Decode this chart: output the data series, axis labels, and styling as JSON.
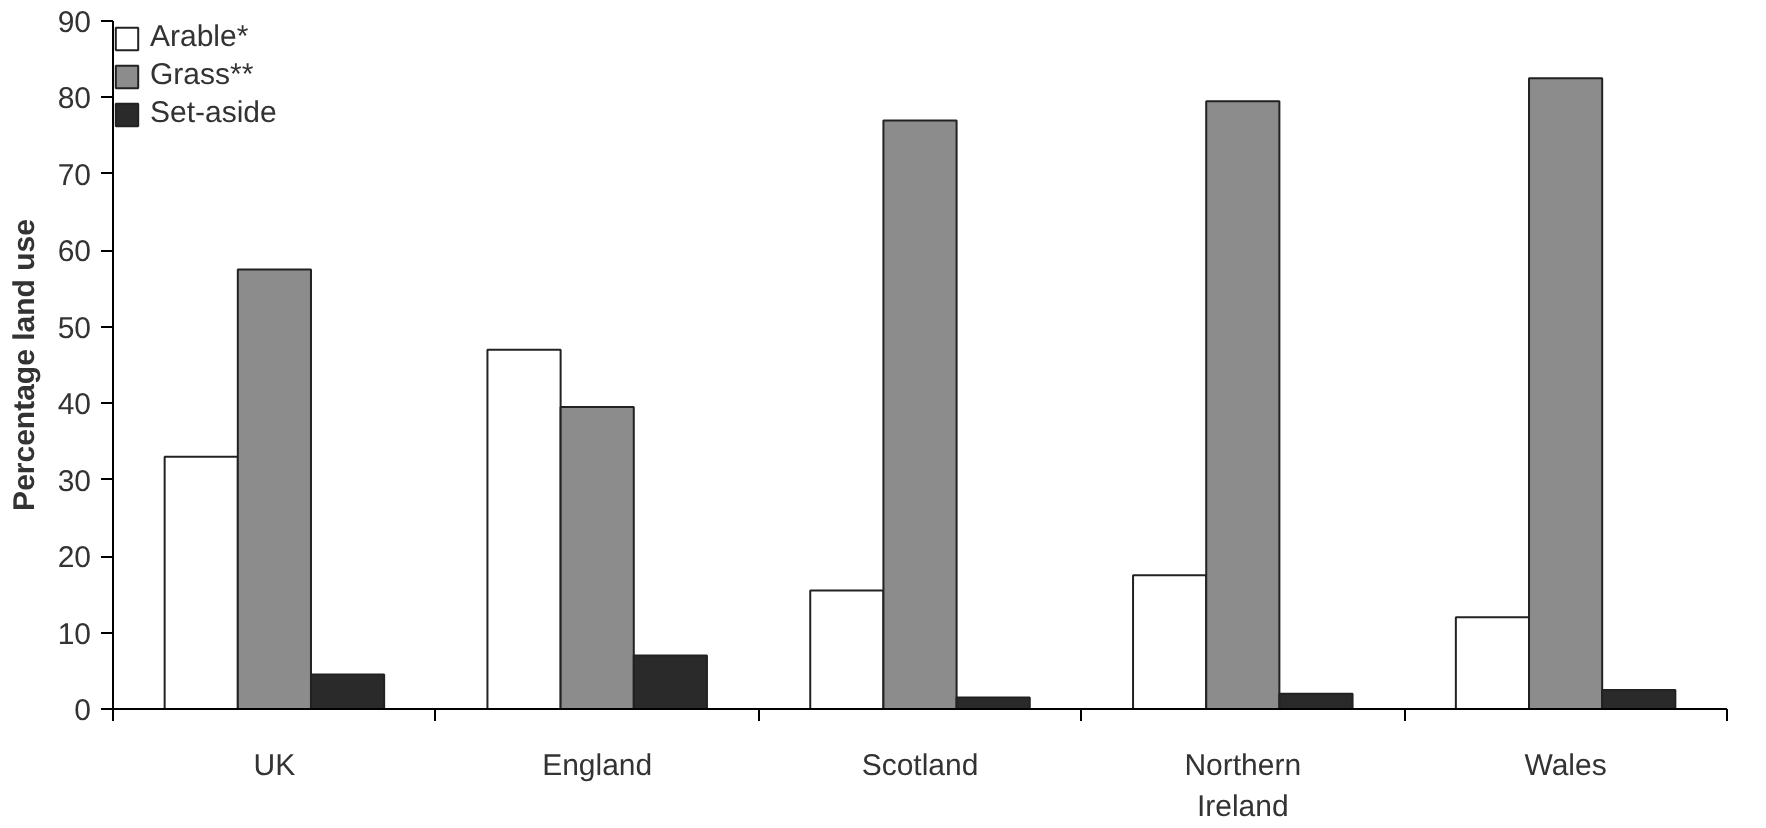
{
  "chart_data": {
    "type": "bar",
    "ylabel": "Percentage land use",
    "categories": [
      "UK",
      "England",
      "Scotland",
      "Northern Ireland",
      "Wales"
    ],
    "series": [
      {
        "name": "Arable*",
        "color": "#ffffff",
        "values": [
          33,
          47,
          15.5,
          17.5,
          12
        ]
      },
      {
        "name": "Grass**",
        "color": "#8c8c8c",
        "values": [
          57.5,
          39.5,
          77,
          79.5,
          82.5
        ]
      },
      {
        "name": "Set-aside",
        "color": "#2a2a2a",
        "values": [
          4.5,
          7,
          1.5,
          2,
          2.5
        ]
      }
    ],
    "ylim": [
      0,
      90
    ],
    "yticks": [
      0,
      10,
      20,
      30,
      40,
      50,
      60,
      70,
      80,
      90
    ],
    "grid": false,
    "legend": "top left"
  }
}
